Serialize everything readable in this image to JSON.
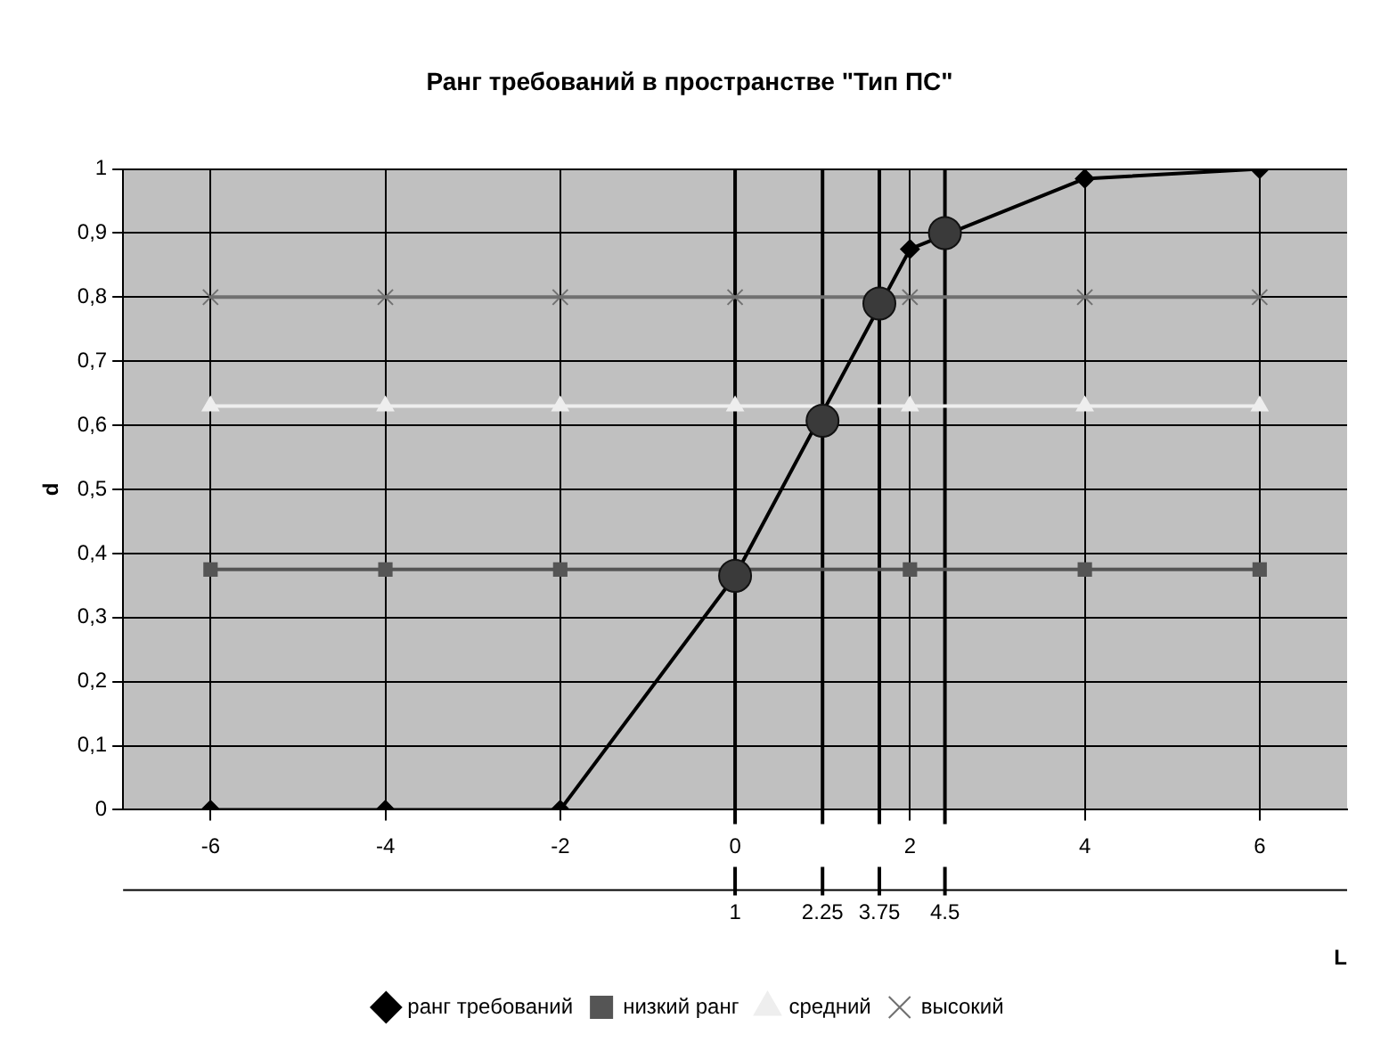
{
  "chart_data": {
    "type": "line",
    "title": "Ранг требований в пространстве \"Тип ПС\"",
    "xlabel": "L",
    "ylabel": "d",
    "xlim": [
      -7,
      7
    ],
    "xticks": [
      -6,
      -4,
      -2,
      0,
      2,
      4,
      6
    ],
    "ylim": [
      0,
      1
    ],
    "yticks": [
      0,
      {
        "value": 0.1,
        "label": "0,1"
      },
      {
        "value": 0.2,
        "label": "0,2"
      },
      {
        "value": 0.3,
        "label": "0,3"
      },
      {
        "value": 0.4,
        "label": "0,4"
      },
      {
        "value": 0.5,
        "label": "0,5"
      },
      {
        "value": 0.6,
        "label": "0,6"
      },
      {
        "value": 0.7,
        "label": "0,7"
      },
      {
        "value": 0.8,
        "label": "0,8"
      },
      {
        "value": 0.9,
        "label": "0,9"
      },
      1
    ],
    "x": [
      -6,
      -4,
      -2,
      0,
      2,
      4,
      6
    ],
    "series": [
      {
        "name": "ранг требований",
        "color": "#000000",
        "marker": "diamond",
        "values": [
          0,
          0,
          0,
          0.365,
          0.875,
          0.985,
          1
        ]
      },
      {
        "name": "низкий ранг",
        "color": "#555555",
        "marker": "square",
        "values": [
          0.375,
          0.375,
          0.375,
          0.375,
          0.375,
          0.375,
          0.375
        ]
      },
      {
        "name": "средний",
        "color": "#eeeeee",
        "marker": "triangle",
        "values": [
          0.63,
          0.63,
          0.63,
          0.63,
          0.63,
          0.63,
          0.63
        ]
      },
      {
        "name": "высокий",
        "color": "#707070",
        "marker": "cross",
        "values": [
          0.8,
          0.8,
          0.8,
          0.8,
          0.8,
          0.8,
          0.8
        ]
      },
      {
        "type": "scatter",
        "color": "#3a3a3a",
        "marker": "circle",
        "x": [
          0,
          1,
          1.65,
          2.4
        ],
        "values": [
          0.365,
          0.607,
          0.79,
          0.9
        ]
      }
    ],
    "ref_lines": [
      {
        "axis": "x",
        "value": 0,
        "color": "#000000"
      },
      {
        "axis": "x",
        "value": 1,
        "color": "#000000"
      },
      {
        "axis": "x",
        "value": 1.65,
        "color": "#000000"
      },
      {
        "axis": "x",
        "value": 2.4,
        "color": "#000000"
      }
    ],
    "annotations": [
      "1",
      "2.25",
      "3.75",
      "4.5"
    ],
    "grid": true,
    "legend": "bottom"
  }
}
